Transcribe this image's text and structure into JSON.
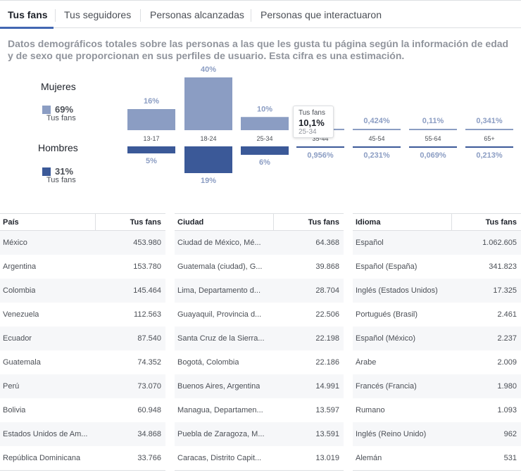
{
  "tabs": [
    {
      "label": "Tus fans",
      "active": true
    },
    {
      "label": "Tus seguidores",
      "active": false
    },
    {
      "label": "Personas alcanzadas",
      "active": false
    },
    {
      "label": "Personas que interactuaron",
      "active": false
    }
  ],
  "description": "Datos demográficos totales sobre las personas a las que les gusta tu página según la información de edad y de sexo que proporcionan en sus perfiles de usuario. Esta cifra es una estimación.",
  "legend": {
    "women": {
      "title": "Mujeres",
      "percent": "69%",
      "sub": "Tus fans",
      "color": "#8b9dc3"
    },
    "men": {
      "title": "Hombres",
      "percent": "31%",
      "sub": "Tus fans",
      "color": "#3b5998"
    }
  },
  "chart_data": {
    "type": "bar",
    "categories": [
      "13-17",
      "18-24",
      "25-34",
      "35-44",
      "45-54",
      "55-64",
      "65+"
    ],
    "series": [
      {
        "name": "Mujeres",
        "values": [
          16,
          40,
          10,
          1.1,
          0.424,
          0.11,
          0.341
        ],
        "labels": [
          "16%",
          "40%",
          "10%",
          "",
          "0,424%",
          "0,11%",
          "0,341%"
        ]
      },
      {
        "name": "Hombres",
        "values": [
          5,
          19,
          6,
          0.956,
          0.231,
          0.069,
          0.213
        ],
        "labels": [
          "5%",
          "19%",
          "6%",
          "0,956%",
          "0,231%",
          "0,069%",
          "0,213%"
        ]
      }
    ],
    "colors": {
      "women": "#8b9dc3",
      "men": "#3b5998"
    }
  },
  "tooltip": {
    "label": "Tus fans",
    "value": "10,1%",
    "range": "25-34"
  },
  "tables": [
    {
      "header_name": "País",
      "header_value": "Tus fans",
      "rows": [
        {
          "name": "México",
          "value": "453.980"
        },
        {
          "name": "Argentina",
          "value": "153.780"
        },
        {
          "name": "Colombia",
          "value": "145.464"
        },
        {
          "name": "Venezuela",
          "value": "112.563"
        },
        {
          "name": "Ecuador",
          "value": "87.540"
        },
        {
          "name": "Guatemala",
          "value": "74.352"
        },
        {
          "name": "Perú",
          "value": "73.070"
        },
        {
          "name": "Bolivia",
          "value": "60.948"
        },
        {
          "name": "Estados Unidos de Am...",
          "value": "34.868"
        },
        {
          "name": "República Dominicana",
          "value": "33.766"
        }
      ]
    },
    {
      "header_name": "Ciudad",
      "header_value": "Tus fans",
      "rows": [
        {
          "name": "Ciudad de México, Mé...",
          "value": "64.368"
        },
        {
          "name": "Guatemala (ciudad), G...",
          "value": "39.868"
        },
        {
          "name": "Lima, Departamento d...",
          "value": "28.704"
        },
        {
          "name": "Guayaquil, Provincia d...",
          "value": "22.506"
        },
        {
          "name": "Santa Cruz de la Sierra...",
          "value": "22.198"
        },
        {
          "name": "Bogotá, Colombia",
          "value": "22.186"
        },
        {
          "name": "Buenos Aires, Argentina",
          "value": "14.991"
        },
        {
          "name": "Managua, Departamen...",
          "value": "13.597"
        },
        {
          "name": "Puebla de Zaragoza, M...",
          "value": "13.591"
        },
        {
          "name": "Caracas, Distrito Capit...",
          "value": "13.019"
        }
      ]
    },
    {
      "header_name": "Idioma",
      "header_value": "Tus fans",
      "rows": [
        {
          "name": "Español",
          "value": "1.062.605"
        },
        {
          "name": "Español (España)",
          "value": "341.823"
        },
        {
          "name": "Inglés (Estados Unidos)",
          "value": "17.325"
        },
        {
          "name": "Portugués (Brasil)",
          "value": "2.461"
        },
        {
          "name": "Español (México)",
          "value": "2.237"
        },
        {
          "name": "Árabe",
          "value": "2.009"
        },
        {
          "name": "Francés (Francia)",
          "value": "1.980"
        },
        {
          "name": "Rumano",
          "value": "1.093"
        },
        {
          "name": "Inglés (Reino Unido)",
          "value": "962"
        },
        {
          "name": "Alemán",
          "value": "531"
        }
      ]
    }
  ]
}
